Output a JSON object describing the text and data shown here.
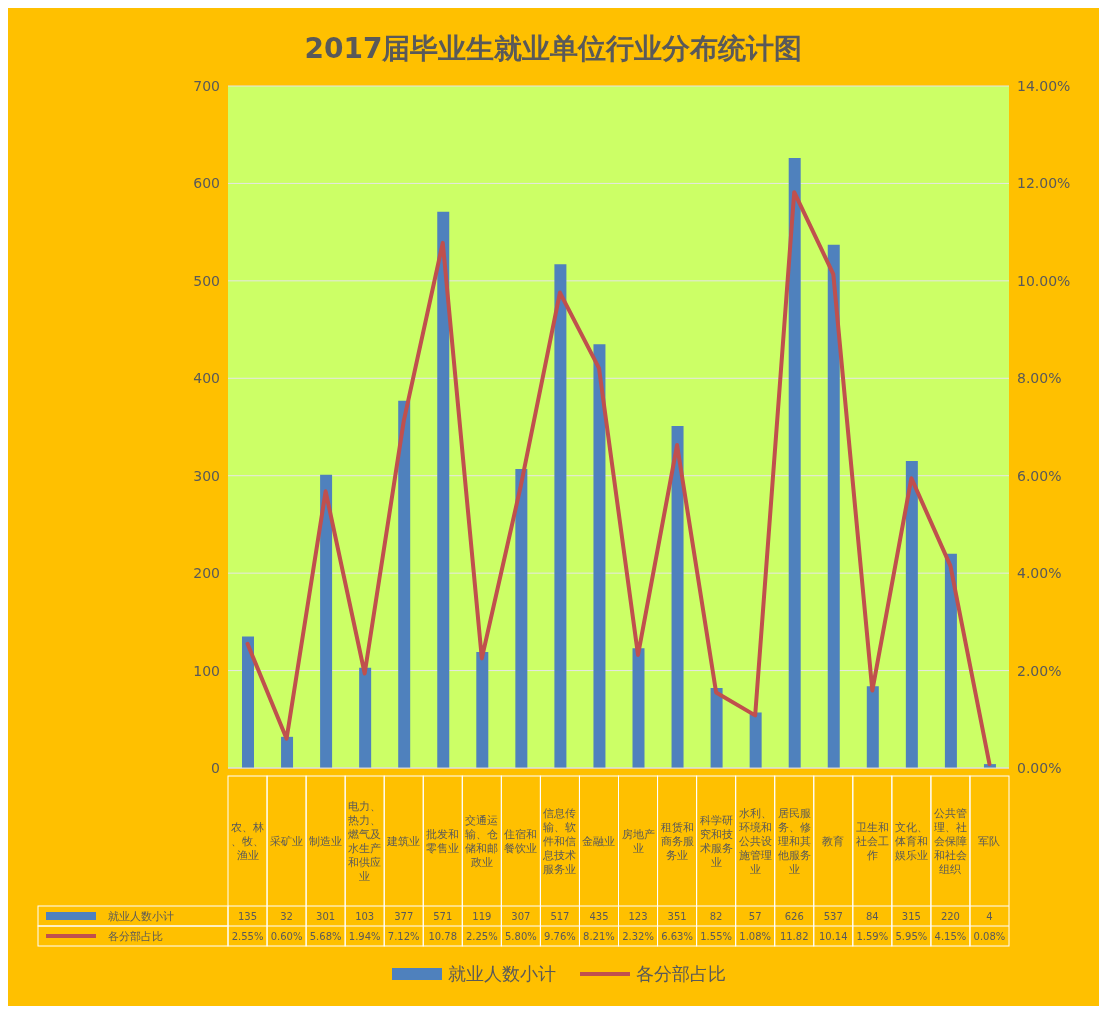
{
  "chart_data": {
    "type": "bar",
    "title": "2017届毕业生就业单位行业分布统计图",
    "categories": [
      "农、林、牧、渔业",
      "采矿业",
      "制造业",
      "电力、热力、燃气及水生产和供应业",
      "建筑业",
      "批发和零售业",
      "交通运输、仓储和邮政业",
      "住宿和餐饮业",
      "信息传输、软件和信息技术服务业",
      "金融业",
      "房地产业",
      "租赁和商务服务业",
      "科学研究和技术服务业",
      "水利、环境和公共设施管理业",
      "居民服务、修理和其他服务业",
      "教育",
      "卫生和社会工作",
      "文化、体育和娱乐业",
      "公共管理、社会保障和社会组织",
      "军队"
    ],
    "series": [
      {
        "name": "就业人数小计",
        "color": "#4f81bd",
        "values": [
          135,
          32,
          301,
          103,
          377,
          571,
          119,
          307,
          517,
          435,
          123,
          351,
          82,
          57,
          626,
          537,
          84,
          315,
          220,
          4
        ],
        "value_labels": [
          "135",
          "32",
          "301",
          "103",
          "377",
          "571",
          "119",
          "307",
          "517",
          "435",
          "123",
          "351",
          "82",
          "57",
          "626",
          "537",
          "84",
          "315",
          "220",
          "4"
        ]
      },
      {
        "name": "各分部占比",
        "type": "line",
        "axis": "y2",
        "color": "#c0504d",
        "values": [
          2.55,
          0.6,
          5.68,
          1.94,
          7.12,
          10.78,
          2.25,
          5.8,
          9.76,
          8.21,
          2.32,
          6.63,
          1.55,
          1.08,
          11.82,
          10.14,
          1.59,
          5.95,
          4.15,
          0.08
        ],
        "value_labels": [
          "2.55%",
          "0.60%",
          "5.68%",
          "1.94%",
          "7.12%",
          "10.78",
          "2.25%",
          "5.80%",
          "9.76%",
          "8.21%",
          "2.32%",
          "6.63%",
          "1.55%",
          "1.08%",
          "11.82",
          "10.14",
          "1.59%",
          "5.95%",
          "4.15%",
          "0.08%"
        ]
      }
    ],
    "ylim": [
      0,
      700
    ],
    "yticks": [
      0,
      100,
      200,
      300,
      400,
      500,
      600,
      700
    ],
    "y2lim": [
      0,
      14
    ],
    "y2ticks": [
      {
        "value": 0,
        "label": "0.00%"
      },
      {
        "value": 2,
        "label": "2.00%"
      },
      {
        "value": 4,
        "label": "4.00%"
      },
      {
        "value": 6,
        "label": "6.00%"
      },
      {
        "value": 8,
        "label": "8.00%"
      },
      {
        "value": 10,
        "label": "10.00%"
      },
      {
        "value": 12,
        "label": "12.00%"
      },
      {
        "value": 14,
        "label": "14.00%"
      }
    ],
    "grid": "y",
    "legend": "bottom",
    "marker": "none",
    "line_style": "solid"
  }
}
